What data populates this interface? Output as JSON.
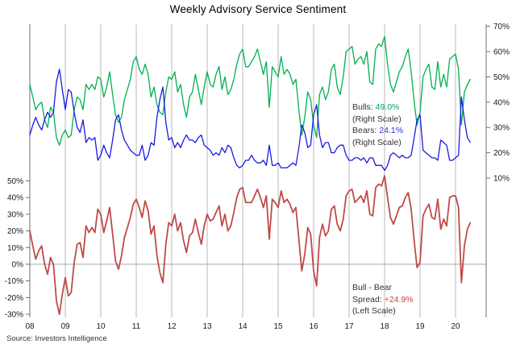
{
  "title": "Weekly Advisory Service Sentiment",
  "source": "Source: Investors  Intelligence",
  "colors": {
    "bulls_line": "#00B050",
    "bears_line": "#1A1AE6",
    "spread_line": "#BE4B48",
    "bulls_value_text": "#00A060",
    "bears_value_text": "#3333CC",
    "spread_value_text": "#D03C3C",
    "grid": "#b8b8b8",
    "zero_line": "#a8a8a8",
    "axis": "#707070",
    "label_text": "#1a1a1a"
  },
  "legend": {
    "bulls": {
      "label": "Bulls:",
      "value": "49.0%",
      "scale": "(Right Scale)"
    },
    "bears": {
      "label": "Bears:",
      "value": "24.1%",
      "scale": "(Right Scale)"
    },
    "spread": {
      "line1": "Bull - Bear",
      "label": "Spread:",
      "value": "+24.9%",
      "scale": "(Left Scale)"
    }
  },
  "chart_data": {
    "type": "line",
    "title": "Weekly Advisory Service Sentiment",
    "x_start_year": 2008,
    "x_step_months": 1,
    "x_end_label": "mid-2020",
    "x_tick_labels": [
      "08",
      "09",
      "10",
      "11",
      "12",
      "13",
      "14",
      "15",
      "16",
      "17",
      "18",
      "19",
      "20"
    ],
    "x_tick_years": [
      2008,
      2009,
      2010,
      2011,
      2012,
      2013,
      2014,
      2015,
      2016,
      2017,
      2018,
      2019,
      2020
    ],
    "grid": "vertical-yearly",
    "right_axis": {
      "ticks": [
        70,
        60,
        50,
        40,
        30,
        20,
        10
      ],
      "unit": "%",
      "applies_to": [
        "Bulls",
        "Bears"
      ]
    },
    "left_axis": {
      "ticks": [
        50,
        40,
        30,
        20,
        10,
        0,
        -10,
        -20,
        -30
      ],
      "unit": "%",
      "zero_gridline": true,
      "applies_to": [
        "Bull - Bear Spread"
      ]
    },
    "series": [
      {
        "name": "Bulls",
        "axis": "right",
        "color_key": "bulls_line",
        "last_value": 49.0,
        "values": [
          47,
          42,
          37,
          39,
          40,
          33,
          30,
          38,
          36,
          26,
          23,
          27,
          29,
          26,
          27,
          37,
          42,
          41,
          37,
          47,
          45,
          47,
          45,
          50,
          49,
          42,
          46,
          52,
          43,
          35,
          32,
          34,
          41,
          45,
          49,
          56,
          58,
          53,
          51,
          55,
          51,
          42,
          46,
          39,
          36,
          35,
          44,
          50,
          49,
          52,
          44,
          47,
          39,
          34,
          42,
          44,
          51,
          45,
          39,
          46,
          52,
          47,
          46,
          51,
          54,
          45,
          50,
          43,
          45,
          49,
          55,
          59,
          61,
          54,
          54,
          56,
          58,
          61,
          56,
          51,
          56,
          38,
          54,
          52,
          50,
          58,
          51,
          53,
          51,
          47,
          49,
          37,
          27,
          34,
          44,
          41,
          31,
          26,
          43,
          46,
          41,
          44,
          53,
          55,
          46,
          43,
          50,
          60,
          61,
          62,
          55,
          57,
          58,
          55,
          60,
          48,
          47,
          61,
          63,
          62,
          66,
          55,
          47,
          44,
          48,
          52,
          54,
          58,
          61,
          52,
          40,
          31,
          36,
          50,
          53,
          55,
          46,
          45,
          56,
          46,
          51,
          46,
          57,
          58,
          59,
          53,
          31,
          44,
          47,
          49
        ]
      },
      {
        "name": "Bears",
        "axis": "right",
        "color_key": "bears_line",
        "last_value": 24.1,
        "values": [
          27,
          31,
          34,
          31,
          29,
          33,
          36,
          34,
          36,
          48,
          53,
          45,
          37,
          45,
          44,
          36,
          30,
          28,
          33,
          24,
          26,
          25,
          26,
          17,
          19,
          23,
          20,
          18,
          25,
          33,
          35,
          29,
          25,
          23,
          21,
          20,
          19,
          19,
          23,
          17,
          19,
          24,
          23,
          34,
          41,
          46,
          32,
          25,
          26,
          22,
          24,
          22,
          25,
          27,
          25,
          25,
          24,
          26,
          27,
          23,
          22,
          21,
          19,
          20,
          19,
          22,
          20,
          23,
          22,
          18,
          15,
          14,
          15,
          17,
          17,
          19,
          17,
          16,
          16,
          17,
          15,
          23,
          15,
          15,
          16,
          14,
          14,
          14,
          15,
          16,
          15,
          22,
          31,
          28,
          22,
          23,
          35,
          39,
          27,
          22,
          24,
          24,
          20,
          20,
          22,
          23,
          23,
          19,
          17,
          17,
          18,
          18,
          17,
          18,
          16,
          18,
          18,
          15,
          15,
          15,
          13,
          15,
          19,
          20,
          19,
          18,
          19,
          18,
          18,
          19,
          26,
          33,
          35,
          21,
          20,
          19,
          18,
          18,
          17,
          25,
          24,
          23,
          17,
          17,
          18,
          19,
          42,
          33,
          26,
          24.1
        ]
      },
      {
        "name": "Bull - Bear Spread",
        "axis": "left",
        "color_key": "spread_line",
        "last_value": 24.9,
        "values": [
          20,
          11,
          3,
          8,
          11,
          0,
          -6,
          4,
          0,
          -22,
          -30,
          -18,
          -8,
          -19,
          -17,
          1,
          12,
          13,
          4,
          23,
          19,
          22,
          19,
          33,
          30,
          19,
          26,
          34,
          18,
          2,
          -3,
          5,
          16,
          22,
          28,
          36,
          39,
          34,
          28,
          38,
          32,
          18,
          23,
          5,
          -5,
          -11,
          12,
          25,
          23,
          30,
          20,
          25,
          14,
          7,
          17,
          19,
          27,
          19,
          12,
          23,
          30,
          26,
          27,
          31,
          35,
          23,
          30,
          20,
          23,
          31,
          40,
          45,
          46,
          37,
          37,
          37,
          41,
          45,
          40,
          34,
          41,
          15,
          39,
          37,
          34,
          44,
          37,
          39,
          36,
          31,
          34,
          15,
          -4,
          6,
          22,
          18,
          -4,
          -13,
          16,
          24,
          17,
          20,
          33,
          35,
          24,
          20,
          27,
          41,
          44,
          45,
          37,
          39,
          41,
          37,
          44,
          30,
          29,
          46,
          48,
          47,
          53,
          40,
          28,
          24,
          29,
          34,
          35,
          40,
          43,
          33,
          14,
          -2,
          1,
          29,
          33,
          36,
          28,
          27,
          39,
          21,
          27,
          23,
          40,
          41,
          41,
          34,
          -11,
          11,
          21,
          24.9
        ]
      }
    ]
  }
}
